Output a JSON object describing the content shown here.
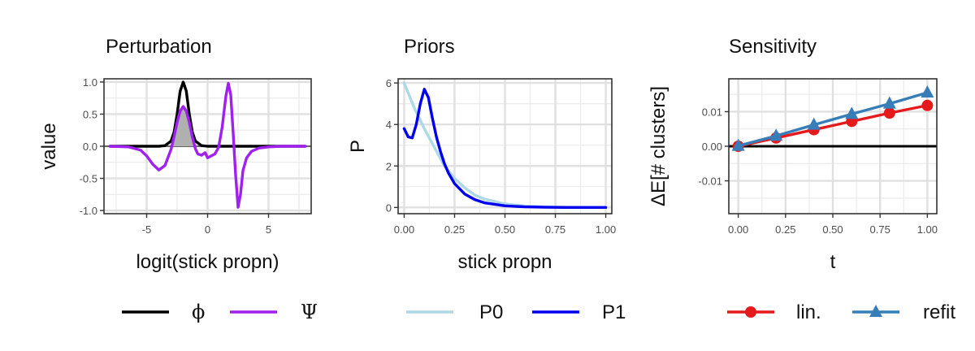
{
  "chart_data": [
    {
      "type": "line",
      "title": "Perturbation",
      "xlabel": "logit(stick propn)",
      "ylabel": "value",
      "xlim": [
        -8.5,
        8.5
      ],
      "ylim": [
        -1.05,
        1.05
      ],
      "xticks": [
        -5,
        0,
        5
      ],
      "yticks": [
        1.0,
        0.5,
        0.0,
        -0.5,
        -1.0
      ],
      "ytick_labels": [
        "1.0",
        "0.5",
        "0.0",
        "-0.5",
        "-1.0"
      ],
      "grid": true,
      "legend_position": "bottom",
      "series": [
        {
          "name": "ϕ",
          "color": "#000000",
          "x": [
            -8,
            -6,
            -4,
            -3.5,
            -3,
            -2.75,
            -2.5,
            -2.25,
            -2,
            -1.75,
            -1.5,
            -1.25,
            -1,
            -0.5,
            0,
            2,
            4,
            6,
            8
          ],
          "y": [
            0,
            0,
            0,
            0.01,
            0.08,
            0.22,
            0.5,
            0.86,
            1.0,
            0.86,
            0.5,
            0.22,
            0.08,
            0.01,
            0,
            0,
            0,
            0,
            0
          ]
        },
        {
          "name": "Ψ",
          "color": "#a020f0",
          "x": [
            -8,
            -6.5,
            -5.5,
            -5,
            -4.5,
            -4,
            -3.5,
            -3,
            -2.75,
            -2.5,
            -2.25,
            -2,
            -1.75,
            -1.5,
            -1.25,
            -1,
            -0.8,
            -0.5,
            -0.2,
            0,
            0.3,
            0.6,
            0.9,
            1.2,
            1.5,
            1.7,
            1.9,
            2.1,
            2.3,
            2.5,
            2.7,
            2.9,
            3.2,
            3.6,
            4.2,
            5,
            6,
            7,
            8
          ],
          "y": [
            0,
            -0.01,
            -0.06,
            -0.15,
            -0.28,
            -0.37,
            -0.3,
            -0.05,
            0.15,
            0.37,
            0.55,
            0.62,
            0.55,
            0.37,
            0.14,
            -0.04,
            -0.12,
            -0.14,
            -0.1,
            -0.18,
            -0.15,
            -0.12,
            -0.02,
            0.3,
            0.78,
            0.98,
            0.8,
            0.2,
            -0.45,
            -0.95,
            -0.75,
            -0.38,
            -0.18,
            -0.08,
            -0.03,
            -0.01,
            0,
            0,
            0
          ]
        }
      ],
      "shaded_area": {
        "under": "ϕ and Ψ overlap",
        "color": "#b0b0b0"
      }
    },
    {
      "type": "line",
      "title": "Priors",
      "xlabel": "stick propn",
      "ylabel": "P",
      "xlim": [
        -0.03,
        1.03
      ],
      "ylim": [
        -0.3,
        6.2
      ],
      "xticks": [
        0.0,
        0.25,
        0.5,
        0.75,
        1.0
      ],
      "xtick_labels": [
        "0.00",
        "0.25",
        "0.50",
        "0.75",
        "1.00"
      ],
      "yticks": [
        0,
        2,
        4,
        6
      ],
      "ytick_labels": [
        "0",
        "2",
        "4",
        "6"
      ],
      "grid": true,
      "legend_position": "bottom",
      "series": [
        {
          "name": "P0",
          "color": "#add8e6",
          "x": [
            0,
            0.05,
            0.1,
            0.15,
            0.2,
            0.25,
            0.3,
            0.35,
            0.4,
            0.5,
            0.6,
            0.7,
            0.8,
            0.9,
            1.0
          ],
          "y": [
            6.0,
            4.8,
            3.8,
            2.9,
            2.0,
            1.4,
            0.95,
            0.6,
            0.4,
            0.17,
            0.07,
            0.03,
            0.01,
            0.0,
            0.0
          ]
        },
        {
          "name": "P1",
          "color": "#0000ee",
          "x": [
            0,
            0.02,
            0.04,
            0.06,
            0.08,
            0.1,
            0.12,
            0.14,
            0.16,
            0.18,
            0.2,
            0.22,
            0.25,
            0.3,
            0.35,
            0.4,
            0.5,
            0.6,
            0.7,
            0.8,
            0.9,
            1.0
          ],
          "y": [
            3.8,
            3.4,
            3.35,
            4.0,
            5.0,
            5.7,
            5.3,
            4.3,
            3.4,
            2.7,
            2.1,
            1.65,
            1.15,
            0.65,
            0.38,
            0.22,
            0.08,
            0.03,
            0.01,
            0.0,
            0.0,
            0.0
          ]
        }
      ]
    },
    {
      "type": "line",
      "title": "Sensitivity",
      "xlabel": "t",
      "ylabel": "ΔE[# clusters]",
      "xlim": [
        -0.05,
        1.05
      ],
      "ylim": [
        -0.0195,
        0.0195
      ],
      "xticks": [
        0.0,
        0.25,
        0.5,
        0.75,
        1.0
      ],
      "xtick_labels": [
        "0.00",
        "0.25",
        "0.50",
        "0.75",
        "1.00"
      ],
      "yticks": [
        0.01,
        0.0,
        -0.01
      ],
      "ytick_labels": [
        "0.01",
        "0.00",
        "-0.01"
      ],
      "grid": true,
      "legend_position": "bottom",
      "hline": {
        "y": 0,
        "color": "#000000"
      },
      "series": [
        {
          "name": "lin.",
          "color": "#e41a1c",
          "marker": "circle",
          "x": [
            0,
            0.2,
            0.4,
            0.6,
            0.8,
            1.0
          ],
          "y": [
            0,
            0.0024,
            0.0048,
            0.0072,
            0.0096,
            0.0118
          ]
        },
        {
          "name": "refit",
          "color": "#377eb8",
          "marker": "triangle",
          "x": [
            0,
            0.2,
            0.4,
            0.6,
            0.8,
            1.0
          ],
          "y": [
            0.0001,
            0.003,
            0.0062,
            0.0093,
            0.0123,
            0.0155
          ]
        }
      ]
    }
  ]
}
